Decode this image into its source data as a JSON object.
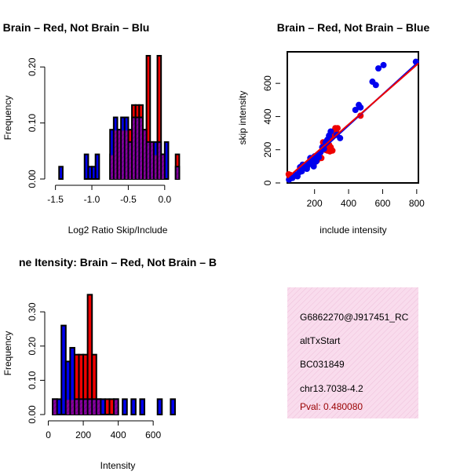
{
  "chart_data": [
    {
      "type": "bar",
      "title": "RatioData: Brain – Red, Not Brain – Blu",
      "xlabel": "Log2 Ratio Skip/Include",
      "ylabel": "Frequency",
      "xlim": [
        -1.55,
        0.25
      ],
      "ylim": [
        0,
        0.22
      ],
      "xticks": [
        {
          "v": -1.5,
          "label": "-1.5"
        },
        {
          "v": -1.0,
          "label": "-1.0"
        },
        {
          "v": -0.5,
          "label": "-0.5"
        },
        {
          "v": 0.0,
          "label": "0.0"
        }
      ],
      "yticks": [
        {
          "v": 0.0,
          "label": "0.00"
        },
        {
          "v": 0.1,
          "label": "0.10"
        },
        {
          "v": 0.2,
          "label": "0.20"
        }
      ],
      "series": [
        {
          "name": "Not Brain",
          "color": "#0000ee",
          "bins": [
            {
              "x0": -1.45,
              "x1": -1.4,
              "y": 0.022
            },
            {
              "x0": -1.1,
              "x1": -1.05,
              "y": 0.044
            },
            {
              "x0": -1.05,
              "x1": -1.0,
              "y": 0.022
            },
            {
              "x0": -1.0,
              "x1": -0.95,
              "y": 0.022
            },
            {
              "x0": -0.95,
              "x1": -0.9,
              "y": 0.044
            },
            {
              "x0": -0.75,
              "x1": -0.7,
              "y": 0.088
            },
            {
              "x0": -0.7,
              "x1": -0.65,
              "y": 0.11
            },
            {
              "x0": -0.65,
              "x1": -0.6,
              "y": 0.088
            },
            {
              "x0": -0.6,
              "x1": -0.55,
              "y": 0.11
            },
            {
              "x0": -0.55,
              "x1": -0.5,
              "y": 0.11
            },
            {
              "x0": -0.5,
              "x1": -0.45,
              "y": 0.066
            },
            {
              "x0": -0.45,
              "x1": -0.4,
              "y": 0.11
            },
            {
              "x0": -0.4,
              "x1": -0.35,
              "y": 0.11
            },
            {
              "x0": -0.35,
              "x1": -0.3,
              "y": 0.11
            },
            {
              "x0": -0.3,
              "x1": -0.25,
              "y": 0.088
            },
            {
              "x0": -0.25,
              "x1": -0.2,
              "y": 0.066
            },
            {
              "x0": -0.2,
              "x1": -0.15,
              "y": 0.066
            },
            {
              "x0": -0.15,
              "x1": -0.1,
              "y": 0.066
            },
            {
              "x0": -0.1,
              "x1": -0.05,
              "y": 0.066
            },
            {
              "x0": -0.05,
              "x1": 0.0,
              "y": 0.044
            },
            {
              "x0": 0.0,
              "x1": 0.05,
              "y": 0.066
            },
            {
              "x0": 0.15,
              "x1": 0.2,
              "y": 0.022
            }
          ]
        },
        {
          "name": "Brain",
          "color": "#ee0000",
          "bins": [
            {
              "x0": -0.75,
              "x1": -0.7,
              "y": 0.044
            },
            {
              "x0": -0.7,
              "x1": -0.65,
              "y": 0.088
            },
            {
              "x0": -0.65,
              "x1": -0.6,
              "y": 0.088
            },
            {
              "x0": -0.6,
              "x1": -0.55,
              "y": 0.088
            },
            {
              "x0": -0.55,
              "x1": -0.5,
              "y": 0.088
            },
            {
              "x0": -0.5,
              "x1": -0.45,
              "y": 0.088
            },
            {
              "x0": -0.45,
              "x1": -0.4,
              "y": 0.132
            },
            {
              "x0": -0.4,
              "x1": -0.35,
              "y": 0.132
            },
            {
              "x0": -0.35,
              "x1": -0.3,
              "y": 0.132
            },
            {
              "x0": -0.3,
              "x1": -0.25,
              "y": 0.088
            },
            {
              "x0": -0.25,
              "x1": -0.2,
              "y": 0.22
            },
            {
              "x0": -0.2,
              "x1": -0.15,
              "y": 0.066
            },
            {
              "x0": -0.15,
              "x1": -0.1,
              "y": 0.044
            },
            {
              "x0": -0.1,
              "x1": -0.05,
              "y": 0.22
            },
            {
              "x0": -0.05,
              "x1": 0.0,
              "y": 0.044
            },
            {
              "x0": 0.15,
              "x1": 0.2,
              "y": 0.044
            }
          ]
        }
      ]
    },
    {
      "type": "scatter",
      "title": "Brain – Red, Not Brain – Blue",
      "xlabel": "include intensity",
      "ylabel": "skip intensity",
      "xlim": [
        40,
        810
      ],
      "ylim": [
        0,
        790
      ],
      "xticks": [
        {
          "v": 200,
          "label": "200"
        },
        {
          "v": 400,
          "label": "400"
        },
        {
          "v": 600,
          "label": "600"
        },
        {
          "v": 800,
          "label": "800"
        }
      ],
      "yticks": [
        {
          "v": 0,
          "label": "0"
        },
        {
          "v": 200,
          "label": "200"
        },
        {
          "v": 400,
          "label": "400"
        },
        {
          "v": 600,
          "label": "600"
        }
      ],
      "series": [
        {
          "name": "Brain",
          "color": "#ee0000",
          "points": [
            [
              48,
              52
            ],
            [
              58,
              48
            ],
            [
              75,
              38
            ],
            [
              195,
              110
            ],
            [
              215,
              135
            ],
            [
              230,
              175
            ],
            [
              240,
              150
            ],
            [
              250,
              245
            ],
            [
              260,
              200
            ],
            [
              265,
              225
            ],
            [
              270,
              250
            ],
            [
              275,
              195
            ],
            [
              280,
              260
            ],
            [
              285,
              230
            ],
            [
              290,
              190
            ],
            [
              295,
              215
            ],
            [
              300,
              280
            ],
            [
              305,
              195
            ],
            [
              310,
              310
            ],
            [
              318,
              290
            ],
            [
              322,
              330
            ],
            [
              330,
              300
            ],
            [
              335,
              330
            ],
            [
              470,
              405
            ]
          ],
          "fit": [
            [
              40,
              30
            ],
            [
              810,
              720
            ]
          ]
        },
        {
          "name": "Not Brain",
          "color": "#0000ee",
          "points": [
            [
              50,
              20
            ],
            [
              70,
              30
            ],
            [
              90,
              50
            ],
            [
              100,
              40
            ],
            [
              110,
              65
            ],
            [
              115,
              95
            ],
            [
              125,
              70
            ],
            [
              130,
              110
            ],
            [
              140,
              90
            ],
            [
              150,
              110
            ],
            [
              155,
              85
            ],
            [
              160,
              105
            ],
            [
              170,
              120
            ],
            [
              175,
              150
            ],
            [
              185,
              135
            ],
            [
              195,
              100
            ],
            [
              200,
              160
            ],
            [
              210,
              130
            ],
            [
              220,
              170
            ],
            [
              225,
              155
            ],
            [
              235,
              185
            ],
            [
              245,
              215
            ],
            [
              255,
              205
            ],
            [
              265,
              245
            ],
            [
              275,
              260
            ],
            [
              285,
              285
            ],
            [
              295,
              310
            ],
            [
              330,
              290
            ],
            [
              350,
              270
            ],
            [
              440,
              440
            ],
            [
              460,
              470
            ],
            [
              470,
              455
            ],
            [
              540,
              610
            ],
            [
              560,
              590
            ],
            [
              575,
              690
            ],
            [
              605,
              710
            ],
            [
              795,
              730
            ]
          ],
          "fit": [
            [
              40,
              10
            ],
            [
              810,
              730
            ]
          ]
        }
      ]
    },
    {
      "type": "bar",
      "title": "ne Itensity: Brain – Red, Not Brain – B",
      "xlabel": "Intensity",
      "ylabel": "Frequency",
      "xlim": [
        20,
        770
      ],
      "ylim": [
        0,
        0.36
      ],
      "xticks": [
        {
          "v": 0,
          "label": "0"
        },
        {
          "v": 200,
          "label": "200"
        },
        {
          "v": 400,
          "label": "400"
        },
        {
          "v": 600,
          "label": "600"
        }
      ],
      "yticks": [
        {
          "v": 0,
          "label": "0.00"
        },
        {
          "v": 0.1,
          "label": "0.10"
        },
        {
          "v": 0.2,
          "label": "0.20"
        },
        {
          "v": 0.3,
          "label": "0.30"
        }
      ],
      "series": [
        {
          "name": "Not Brain",
          "color": "#0000ee",
          "bins": [
            {
              "x0": 25,
              "x1": 50,
              "y": 0.045
            },
            {
              "x0": 50,
              "x1": 75,
              "y": 0.045
            },
            {
              "x0": 75,
              "x1": 100,
              "y": 0.26
            },
            {
              "x0": 100,
              "x1": 125,
              "y": 0.155
            },
            {
              "x0": 125,
              "x1": 150,
              "y": 0.195
            },
            {
              "x0": 150,
              "x1": 175,
              "y": 0.045
            },
            {
              "x0": 175,
              "x1": 200,
              "y": 0.045
            },
            {
              "x0": 200,
              "x1": 225,
              "y": 0.045
            },
            {
              "x0": 225,
              "x1": 250,
              "y": 0.045
            },
            {
              "x0": 250,
              "x1": 275,
              "y": 0.045
            },
            {
              "x0": 275,
              "x1": 300,
              "y": 0.045
            },
            {
              "x0": 300,
              "x1": 325,
              "y": 0.045
            },
            {
              "x0": 375,
              "x1": 400,
              "y": 0.045
            },
            {
              "x0": 425,
              "x1": 450,
              "y": 0.045
            },
            {
              "x0": 475,
              "x1": 500,
              "y": 0.045
            },
            {
              "x0": 525,
              "x1": 550,
              "y": 0.045
            },
            {
              "x0": 625,
              "x1": 650,
              "y": 0.045
            },
            {
              "x0": 700,
              "x1": 725,
              "y": 0.045
            }
          ]
        },
        {
          "name": "Brain",
          "color": "#ee0000",
          "bins": [
            {
              "x0": 25,
              "x1": 50,
              "y": 0.045
            },
            {
              "x0": 100,
              "x1": 125,
              "y": 0.045
            },
            {
              "x0": 125,
              "x1": 150,
              "y": 0.045
            },
            {
              "x0": 150,
              "x1": 175,
              "y": 0.175
            },
            {
              "x0": 175,
              "x1": 200,
              "y": 0.175
            },
            {
              "x0": 200,
              "x1": 225,
              "y": 0.175
            },
            {
              "x0": 225,
              "x1": 250,
              "y": 0.35
            },
            {
              "x0": 250,
              "x1": 275,
              "y": 0.175
            },
            {
              "x0": 275,
              "x1": 300,
              "y": 0.045
            },
            {
              "x0": 325,
              "x1": 350,
              "y": 0.045
            },
            {
              "x0": 350,
              "x1": 375,
              "y": 0.045
            },
            {
              "x0": 375,
              "x1": 400,
              "y": 0.045
            }
          ]
        }
      ]
    }
  ],
  "info_box": {
    "probe_id": "G6862270@J917451_RC",
    "event_type": "altTxStart",
    "accession": "BC031849",
    "location": "chr13.7038-4.2",
    "pval": "Pval: 0.480080",
    "pval_color": "#990000",
    "background": "#f8d8ec"
  }
}
